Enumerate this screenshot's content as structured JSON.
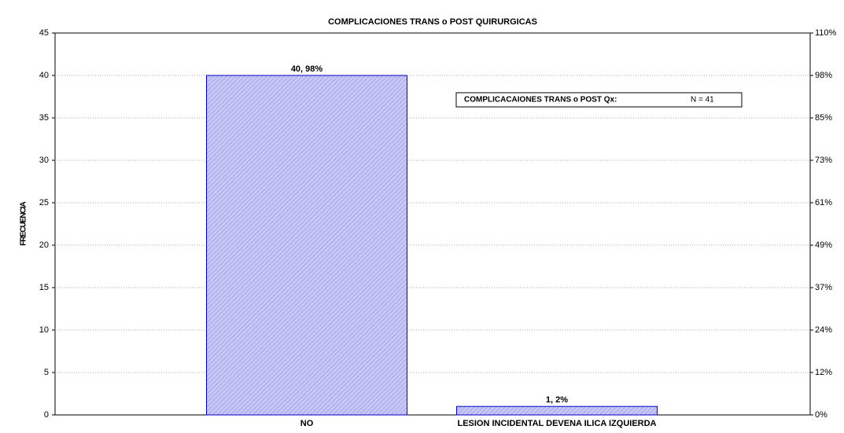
{
  "chart_data": {
    "type": "bar",
    "title": "COMPLICACIONES TRANS o POST QUIRURGICAS",
    "y_label": "FRECUENCIA",
    "categories": [
      "NO",
      "LESION INCIDENTAL DEVENA ILICA IZQUIERDA"
    ],
    "values": [
      40,
      1
    ],
    "value_labels": [
      "40, 98%",
      "1, 2%"
    ],
    "color": "#b4b4f0",
    "edge_color": "#0000c8",
    "ylim": [
      0,
      45
    ],
    "yticks": [
      0,
      5,
      10,
      15,
      20,
      25,
      30,
      35,
      40,
      45
    ],
    "y2lim": [
      0,
      109.8
    ],
    "y2ticks": [
      {
        "value": 0,
        "label": "0%"
      },
      {
        "value": 12.2,
        "label": "12%"
      },
      {
        "value": 24.4,
        "label": "24%"
      },
      {
        "value": 36.6,
        "label": "37%"
      },
      {
        "value": 48.8,
        "label": "49%"
      },
      {
        "value": 61,
        "label": "61%"
      },
      {
        "value": 73.2,
        "label": "73%"
      },
      {
        "value": 85.4,
        "label": "85%"
      },
      {
        "value": 97.6,
        "label": "98%"
      },
      {
        "value": 109.8,
        "label": "110%"
      }
    ],
    "grid": true,
    "annotation": [
      "COMPLICACAIONES TRANS o POST Qx:",
      "N = 41"
    ]
  }
}
